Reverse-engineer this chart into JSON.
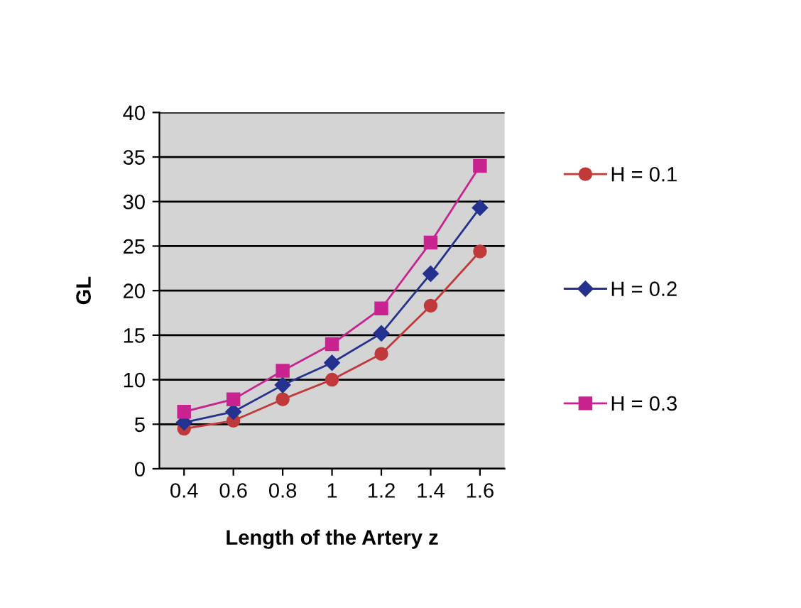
{
  "chart_data": {
    "type": "line",
    "xlabel": "Length of the Artery z",
    "ylabel": "GL",
    "categories": [
      "0.4",
      "0.6",
      "0.8",
      "1",
      "1.2",
      "1.4",
      "1.6"
    ],
    "series": [
      {
        "name": "H = 0.1",
        "color": "#c0393b",
        "marker": "circle",
        "values": [
          4.5,
          5.4,
          7.8,
          10.0,
          12.9,
          18.3,
          24.4
        ]
      },
      {
        "name": "H = 0.2",
        "color": "#24318f",
        "marker": "diamond",
        "values": [
          5.2,
          6.4,
          9.4,
          11.9,
          15.2,
          21.9,
          29.3
        ]
      },
      {
        "name": "H = 0.3",
        "color": "#c8238f",
        "marker": "square",
        "values": [
          6.4,
          7.8,
          11.0,
          14.0,
          18.0,
          25.4,
          34.0
        ]
      }
    ],
    "ylim": [
      0,
      40
    ],
    "yticks": [
      0,
      5,
      10,
      15,
      20,
      25,
      30,
      35,
      40
    ],
    "grid": "y",
    "legend": "right"
  }
}
